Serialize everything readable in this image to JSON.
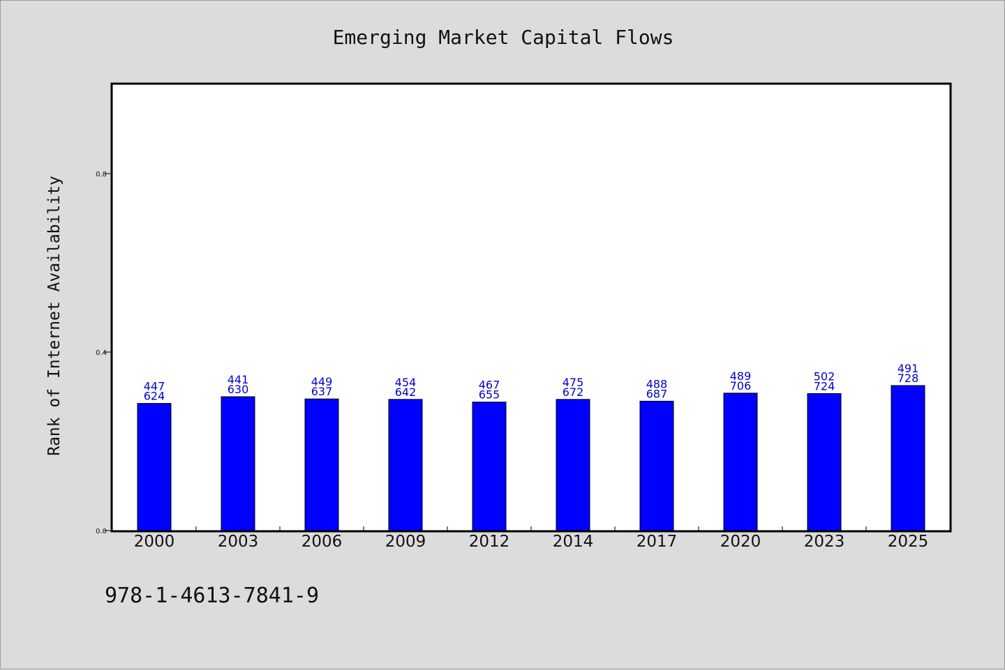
{
  "chart_data": {
    "type": "bar",
    "title": "Emerging Market Capital Flows",
    "xlabel": "",
    "ylabel": "Rank of Internet Availability",
    "categories": [
      "2000",
      "2003",
      "2006",
      "2009",
      "2012",
      "2014",
      "2017",
      "2020",
      "2023",
      "2025"
    ],
    "values": [
      0.285,
      0.3,
      0.295,
      0.294,
      0.288,
      0.294,
      0.29,
      0.308,
      0.307,
      0.325
    ],
    "data_labels_top": [
      "447",
      "441",
      "449",
      "454",
      "467",
      "475",
      "488",
      "489",
      "502",
      "491"
    ],
    "data_labels_bottom": [
      "624",
      "630",
      "637",
      "642",
      "655",
      "672",
      "687",
      "706",
      "724",
      "728"
    ],
    "ylim": [
      0,
      1.0
    ],
    "yticks": [
      0.0,
      0.4,
      0.8
    ],
    "ytick_labels": [
      "0.0",
      "0.4",
      "0.8"
    ],
    "grid": false,
    "legend": "none",
    "bar_color": "#0000ff",
    "label_color": "#0000cc",
    "plot_background": "#ffffff",
    "figure_background": "#dcdcdc"
  },
  "footer_text": "978-1-4613-7841-9"
}
